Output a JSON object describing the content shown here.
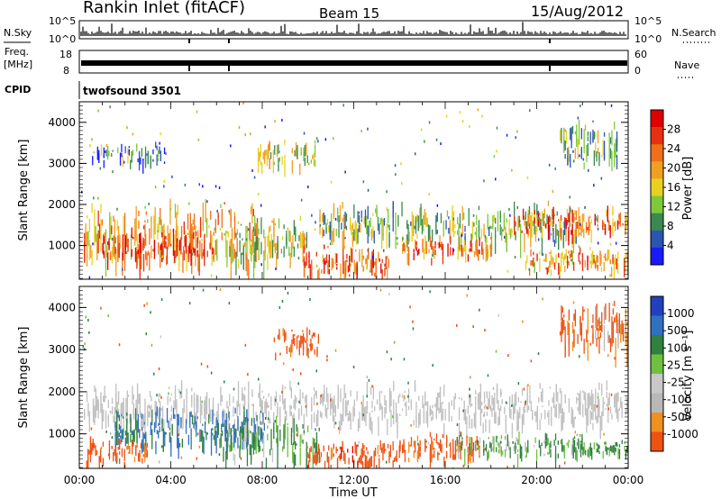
{
  "header": {
    "station": "Rankin Inlet (fitACF)",
    "beam": "Beam 15",
    "date": "15/Aug/2012"
  },
  "top_panels": {
    "nsky_label": "N.Sky",
    "nsearch_label": "N.Search",
    "nsky_ticks": [
      "10^5",
      "10^0"
    ],
    "nsearch_ticks": [
      "10^5",
      "10^0"
    ],
    "freq_label_1": "Freq.",
    "freq_label_2": "[MHz]",
    "freq_ticks": [
      "18",
      "8"
    ],
    "nave_label": "Nave",
    "nave_ticks": [
      "60",
      "0"
    ],
    "cpid_label": "CPID",
    "cpid_text": "twofsound 3501"
  },
  "colors": {
    "power_scale": [
      "#1a1aff",
      "#2a55b0",
      "#3a8a50",
      "#7ec93a",
      "#e8d020",
      "#f0a020",
      "#f07018",
      "#e83010",
      "#e00000"
    ],
    "velocity_scale": [
      "#e00000",
      "#f05010",
      "#f09020",
      "#b8b8b8",
      "#c8c8c8",
      "#70c040",
      "#308040",
      "#3070c0",
      "#2040c0"
    ],
    "ground_scatter": "#c0c0c0"
  },
  "chart_data": [
    {
      "type": "heatmap",
      "title": "Power",
      "ylabel": "Slant Range [km]",
      "xlabel": "",
      "x_ticks": [
        "00:00",
        "04:00",
        "08:00",
        "12:00",
        "16:00",
        "20:00",
        "00:00"
      ],
      "y_ticks": [
        "1000",
        "2000",
        "3000",
        "4000"
      ],
      "xlim_hours": [
        0,
        24
      ],
      "ylim_km": [
        180,
        4500
      ],
      "colorbar_label": "Power [dB]",
      "colorbar_ticks": [
        "4",
        "8",
        "12",
        "16",
        "20",
        "24",
        "28"
      ],
      "colorbar_range": [
        0,
        30
      ],
      "regions": [
        {
          "t0": 0.2,
          "t1": 7.8,
          "r0": 600,
          "r1": 2200,
          "level": 18
        },
        {
          "t0": 1.0,
          "t1": 6.0,
          "r0": 700,
          "r1": 1500,
          "level": 27
        },
        {
          "t0": 6.5,
          "t1": 10.0,
          "r0": 500,
          "r1": 1800,
          "level": 14
        },
        {
          "t0": 9.8,
          "t1": 13.5,
          "r0": 250,
          "r1": 1100,
          "level": 24
        },
        {
          "t0": 10.5,
          "t1": 22.0,
          "r0": 1100,
          "r1": 2100,
          "level": 12
        },
        {
          "t0": 14.0,
          "t1": 18.0,
          "r0": 700,
          "r1": 1300,
          "level": 22
        },
        {
          "t0": 19.0,
          "t1": 24.0,
          "r0": 1300,
          "r1": 2000,
          "level": 22
        },
        {
          "t0": 19.5,
          "t1": 24.0,
          "r0": 400,
          "r1": 1000,
          "level": 20
        },
        {
          "t0": 7.8,
          "t1": 10.3,
          "r0": 2900,
          "r1": 3600,
          "level": 14
        },
        {
          "t0": 21.0,
          "t1": 23.5,
          "r0": 3000,
          "r1": 4200,
          "level": 10
        },
        {
          "t0": 0.5,
          "t1": 3.8,
          "r0": 3000,
          "r1": 3600,
          "level": 8
        }
      ]
    },
    {
      "type": "heatmap",
      "title": "Velocity",
      "ylabel": "Slant Range [km]",
      "xlabel": "Time UT",
      "x_ticks": [
        "00:00",
        "04:00",
        "08:00",
        "12:00",
        "16:00",
        "20:00",
        "00:00"
      ],
      "y_ticks": [
        "1000",
        "2000",
        "3000",
        "4000"
      ],
      "xlim_hours": [
        0,
        24
      ],
      "ylim_km": [
        180,
        4500
      ],
      "colorbar_label": "Velocity [m s⁻¹]",
      "colorbar_ticks": [
        "1000",
        "500",
        "100",
        "25",
        "-25",
        "-100",
        "-500",
        "-1000"
      ],
      "colorbar_range": [
        -1000,
        1000
      ],
      "regions": [
        {
          "t0": 0.2,
          "t1": 24.0,
          "r0": 1200,
          "r1": 2300,
          "level": 0
        },
        {
          "t0": 0.3,
          "t1": 3.0,
          "r0": 300,
          "r1": 1000,
          "level": -250
        },
        {
          "t0": 1.5,
          "t1": 8.2,
          "r0": 700,
          "r1": 1700,
          "level": 600
        },
        {
          "t0": 6.0,
          "t1": 10.5,
          "r0": 400,
          "r1": 1500,
          "level": 150
        },
        {
          "t0": 10.0,
          "t1": 14.0,
          "r0": 250,
          "r1": 900,
          "level": -300
        },
        {
          "t0": 14.0,
          "t1": 17.5,
          "r0": 350,
          "r1": 1100,
          "level": -200
        },
        {
          "t0": 16.5,
          "t1": 22.0,
          "r0": 450,
          "r1": 1100,
          "level": 100
        },
        {
          "t0": 22.0,
          "t1": 24.0,
          "r0": 500,
          "r1": 900,
          "level": 200
        },
        {
          "t0": 8.5,
          "t1": 10.5,
          "r0": 2900,
          "r1": 3600,
          "level": -300
        },
        {
          "t0": 21.0,
          "t1": 24.0,
          "r0": 3000,
          "r1": 4200,
          "level": -150
        }
      ]
    }
  ]
}
